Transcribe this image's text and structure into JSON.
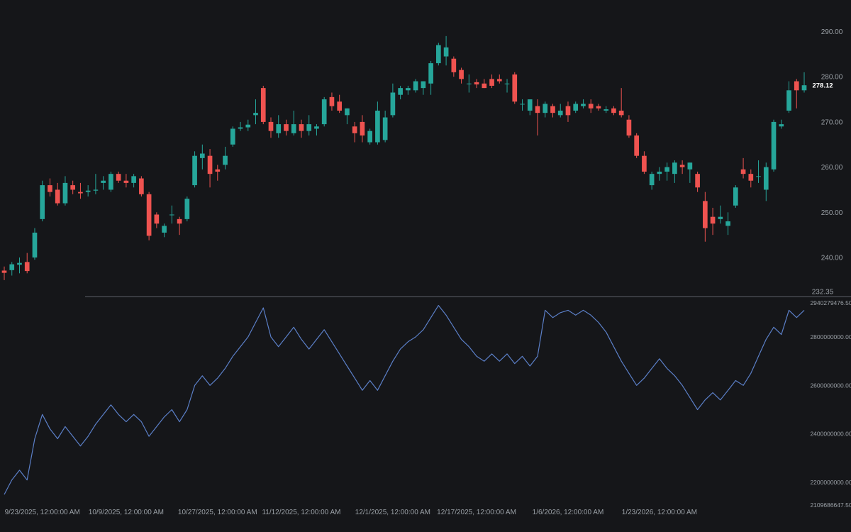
{
  "chart_data": [
    {
      "type": "candlestick",
      "price_scale": {
        "ticks": [
          "290.00",
          "280.00",
          "270.00",
          "260.00",
          "250.00",
          "240.00"
        ],
        "tick_values": [
          290,
          280,
          270,
          260,
          250,
          240
        ],
        "min_label": "232.35",
        "min_value": 232.35,
        "last_price_label": "278.12",
        "ylim": [
          232.35,
          295.2
        ]
      },
      "colors": {
        "up": "#26a69a",
        "down": "#ef5350",
        "background": "#151619",
        "separator": "#5d6068"
      },
      "candles": [
        {
          "o": 237.1,
          "h": 238.0,
          "l": 235.0,
          "c": 236.6
        },
        {
          "o": 237.2,
          "h": 239.0,
          "l": 236.0,
          "c": 238.5
        },
        {
          "o": 238.4,
          "h": 240.0,
          "l": 236.5,
          "c": 238.8
        },
        {
          "o": 239.0,
          "h": 241.0,
          "l": 236.5,
          "c": 237.0
        },
        {
          "o": 240.0,
          "h": 246.5,
          "l": 239.5,
          "c": 245.5
        },
        {
          "o": 248.5,
          "h": 257.0,
          "l": 248.0,
          "c": 256.0
        },
        {
          "o": 256.0,
          "h": 257.5,
          "l": 253.5,
          "c": 254.5
        },
        {
          "o": 255.0,
          "h": 256.5,
          "l": 251.5,
          "c": 252.0
        },
        {
          "o": 252.0,
          "h": 258.0,
          "l": 251.5,
          "c": 256.5
        },
        {
          "o": 256.0,
          "h": 257.0,
          "l": 254.0,
          "c": 255.0
        },
        {
          "o": 254.5,
          "h": 256.5,
          "l": 253.0,
          "c": 254.2
        },
        {
          "o": 254.5,
          "h": 256.0,
          "l": 253.5,
          "c": 254.8
        },
        {
          "o": 254.8,
          "h": 258.5,
          "l": 254.0,
          "c": 255.0
        },
        {
          "o": 256.5,
          "h": 258.0,
          "l": 255.0,
          "c": 257.0
        },
        {
          "o": 255.0,
          "h": 259.0,
          "l": 254.5,
          "c": 258.5
        },
        {
          "o": 258.5,
          "h": 259.0,
          "l": 256.5,
          "c": 257.0
        },
        {
          "o": 257.0,
          "h": 258.5,
          "l": 255.5,
          "c": 256.5
        },
        {
          "o": 256.5,
          "h": 258.5,
          "l": 255.5,
          "c": 258.0
        },
        {
          "o": 257.5,
          "h": 258.0,
          "l": 253.5,
          "c": 254.0
        },
        {
          "o": 254.0,
          "h": 254.5,
          "l": 243.8,
          "c": 244.8
        },
        {
          "o": 249.5,
          "h": 250.0,
          "l": 246.5,
          "c": 247.5
        },
        {
          "o": 245.5,
          "h": 247.5,
          "l": 244.5,
          "c": 247.0
        },
        {
          "o": 249.5,
          "h": 251.5,
          "l": 247.5,
          "c": 249.5
        },
        {
          "o": 248.5,
          "h": 249.0,
          "l": 245.0,
          "c": 247.5
        },
        {
          "o": 248.5,
          "h": 253.5,
          "l": 248.0,
          "c": 253.0
        },
        {
          "o": 256.0,
          "h": 263.5,
          "l": 255.5,
          "c": 262.5
        },
        {
          "o": 262.0,
          "h": 265.0,
          "l": 259.5,
          "c": 263.0
        },
        {
          "o": 262.5,
          "h": 264.0,
          "l": 255.5,
          "c": 258.5
        },
        {
          "o": 259.5,
          "h": 260.5,
          "l": 257.0,
          "c": 259.0
        },
        {
          "o": 260.5,
          "h": 264.5,
          "l": 259.5,
          "c": 262.5
        },
        {
          "o": 265.0,
          "h": 269.0,
          "l": 264.5,
          "c": 268.5
        },
        {
          "o": 268.5,
          "h": 270.0,
          "l": 268.0,
          "c": 268.8
        },
        {
          "o": 268.8,
          "h": 270.5,
          "l": 268.0,
          "c": 269.4
        },
        {
          "o": 271.5,
          "h": 275.0,
          "l": 269.5,
          "c": 272.0
        },
        {
          "o": 277.5,
          "h": 278.0,
          "l": 269.5,
          "c": 270.0
        },
        {
          "o": 270.0,
          "h": 271.0,
          "l": 266.5,
          "c": 268.0
        },
        {
          "o": 267.5,
          "h": 271.5,
          "l": 266.5,
          "c": 269.5
        },
        {
          "o": 269.5,
          "h": 270.5,
          "l": 267.0,
          "c": 268.0
        },
        {
          "o": 267.5,
          "h": 272.5,
          "l": 267.0,
          "c": 269.5
        },
        {
          "o": 269.5,
          "h": 270.5,
          "l": 266.5,
          "c": 268.0
        },
        {
          "o": 268.0,
          "h": 271.5,
          "l": 267.0,
          "c": 269.5
        },
        {
          "o": 268.5,
          "h": 269.5,
          "l": 267.0,
          "c": 269.0
        },
        {
          "o": 269.5,
          "h": 275.5,
          "l": 269.0,
          "c": 275.0
        },
        {
          "o": 275.5,
          "h": 276.5,
          "l": 272.5,
          "c": 273.5
        },
        {
          "o": 274.5,
          "h": 276.0,
          "l": 272.0,
          "c": 272.5
        },
        {
          "o": 271.5,
          "h": 273.0,
          "l": 269.5,
          "c": 273.0
        },
        {
          "o": 269.0,
          "h": 270.0,
          "l": 265.5,
          "c": 267.5
        },
        {
          "o": 270.0,
          "h": 271.5,
          "l": 265.5,
          "c": 267.0
        },
        {
          "o": 265.5,
          "h": 268.5,
          "l": 265.0,
          "c": 268.0
        },
        {
          "o": 265.5,
          "h": 274.5,
          "l": 265.0,
          "c": 272.5
        },
        {
          "o": 266.0,
          "h": 272.5,
          "l": 265.5,
          "c": 271.0
        },
        {
          "o": 271.5,
          "h": 278.5,
          "l": 271.0,
          "c": 276.5
        },
        {
          "o": 276.0,
          "h": 278.0,
          "l": 275.0,
          "c": 277.5
        },
        {
          "o": 277.0,
          "h": 278.0,
          "l": 276.0,
          "c": 277.5
        },
        {
          "o": 277.0,
          "h": 279.5,
          "l": 276.5,
          "c": 279.0
        },
        {
          "o": 277.5,
          "h": 279.0,
          "l": 276.0,
          "c": 279.0
        },
        {
          "o": 278.5,
          "h": 283.5,
          "l": 276.0,
          "c": 283.0
        },
        {
          "o": 283.0,
          "h": 287.5,
          "l": 282.5,
          "c": 287.0
        },
        {
          "o": 284.5,
          "h": 289.0,
          "l": 282.5,
          "c": 286.5
        },
        {
          "o": 284.0,
          "h": 284.5,
          "l": 280.0,
          "c": 281.0
        },
        {
          "o": 281.5,
          "h": 282.0,
          "l": 278.5,
          "c": 279.5
        },
        {
          "o": 278.5,
          "h": 280.5,
          "l": 276.5,
          "c": 278.5
        },
        {
          "o": 278.8,
          "h": 279.5,
          "l": 277.5,
          "c": 278.3
        },
        {
          "o": 278.5,
          "h": 279.5,
          "l": 277.5,
          "c": 277.5
        },
        {
          "o": 279.5,
          "h": 280.5,
          "l": 277.5,
          "c": 278.0
        },
        {
          "o": 279.5,
          "h": 280.5,
          "l": 278.5,
          "c": 279.0
        },
        {
          "o": 278.5,
          "h": 279.5,
          "l": 276.5,
          "c": 278.5
        },
        {
          "o": 280.5,
          "h": 281.0,
          "l": 274.0,
          "c": 274.5
        },
        {
          "o": 274.0,
          "h": 275.0,
          "l": 272.5,
          "c": 274.0
        },
        {
          "o": 272.5,
          "h": 275.0,
          "l": 271.5,
          "c": 275.0
        },
        {
          "o": 273.5,
          "h": 275.0,
          "l": 267.0,
          "c": 272.0
        },
        {
          "o": 272.0,
          "h": 274.5,
          "l": 271.0,
          "c": 274.0
        },
        {
          "o": 273.5,
          "h": 274.0,
          "l": 271.0,
          "c": 272.0
        },
        {
          "o": 271.5,
          "h": 274.0,
          "l": 271.0,
          "c": 272.5
        },
        {
          "o": 273.5,
          "h": 274.5,
          "l": 270.0,
          "c": 271.5
        },
        {
          "o": 272.5,
          "h": 274.5,
          "l": 272.0,
          "c": 274.0
        },
        {
          "o": 273.5,
          "h": 275.0,
          "l": 273.0,
          "c": 274.0
        },
        {
          "o": 274.0,
          "h": 275.0,
          "l": 272.0,
          "c": 273.0
        },
        {
          "o": 273.5,
          "h": 274.0,
          "l": 272.5,
          "c": 273.0
        },
        {
          "o": 272.5,
          "h": 273.5,
          "l": 272.0,
          "c": 272.8
        },
        {
          "o": 273.0,
          "h": 273.5,
          "l": 271.5,
          "c": 272.0
        },
        {
          "o": 272.5,
          "h": 277.5,
          "l": 271.0,
          "c": 271.5
        },
        {
          "o": 270.5,
          "h": 271.5,
          "l": 266.5,
          "c": 267.0
        },
        {
          "o": 267.0,
          "h": 267.5,
          "l": 262.0,
          "c": 262.5
        },
        {
          "o": 262.5,
          "h": 263.5,
          "l": 258.5,
          "c": 259.0
        },
        {
          "o": 256.0,
          "h": 259.0,
          "l": 255.0,
          "c": 258.5
        },
        {
          "o": 258.5,
          "h": 260.0,
          "l": 257.0,
          "c": 259.0
        },
        {
          "o": 259.0,
          "h": 261.0,
          "l": 257.0,
          "c": 260.0
        },
        {
          "o": 258.5,
          "h": 261.5,
          "l": 256.5,
          "c": 261.0
        },
        {
          "o": 260.5,
          "h": 261.5,
          "l": 258.5,
          "c": 260.0
        },
        {
          "o": 259.5,
          "h": 261.0,
          "l": 256.5,
          "c": 261.0
        },
        {
          "o": 258.5,
          "h": 259.0,
          "l": 254.5,
          "c": 255.5
        },
        {
          "o": 252.5,
          "h": 254.5,
          "l": 243.5,
          "c": 246.5
        },
        {
          "o": 249.0,
          "h": 251.0,
          "l": 245.0,
          "c": 247.5
        },
        {
          "o": 248.5,
          "h": 251.5,
          "l": 247.5,
          "c": 249.0
        },
        {
          "o": 247.0,
          "h": 250.0,
          "l": 245.0,
          "c": 248.0
        },
        {
          "o": 251.5,
          "h": 256.0,
          "l": 251.0,
          "c": 255.5
        },
        {
          "o": 259.5,
          "h": 262.0,
          "l": 257.5,
          "c": 258.5
        },
        {
          "o": 258.5,
          "h": 259.5,
          "l": 255.5,
          "c": 257.0
        },
        {
          "o": 258.0,
          "h": 261.5,
          "l": 256.5,
          "c": 258.0
        },
        {
          "o": 255.0,
          "h": 261.0,
          "l": 252.5,
          "c": 260.0
        },
        {
          "o": 259.5,
          "h": 270.5,
          "l": 259.0,
          "c": 270.0
        },
        {
          "o": 269.0,
          "h": 270.5,
          "l": 268.5,
          "c": 269.5
        },
        {
          "o": 272.5,
          "h": 279.0,
          "l": 272.0,
          "c": 277.0
        },
        {
          "o": 279.0,
          "h": 279.5,
          "l": 273.0,
          "c": 277.0
        },
        {
          "o": 277.0,
          "h": 281.0,
          "l": 276.5,
          "c": 278.12
        }
      ]
    },
    {
      "type": "line",
      "value_scale": {
        "ticks": [
          "2800000000.00",
          "2600000000.00",
          "2400000000.00",
          "2200000000.00"
        ],
        "tick_values": [
          2800000000,
          2600000000,
          2400000000,
          2200000000
        ],
        "max_label": "2940279476.50",
        "max_value": 2940279476.5,
        "min_label": "2109686647.50",
        "min_value": 2109686647.5
      },
      "colors": {
        "line": "#5b7fc7"
      },
      "values": [
        2150000000,
        2210000000,
        2250000000,
        2210000000,
        2380000000,
        2480000000,
        2420000000,
        2380000000,
        2430000000,
        2390000000,
        2350000000,
        2390000000,
        2440000000,
        2480000000,
        2520000000,
        2480000000,
        2450000000,
        2480000000,
        2450000000,
        2390000000,
        2430000000,
        2470000000,
        2500000000,
        2450000000,
        2500000000,
        2600000000,
        2640000000,
        2600000000,
        2630000000,
        2670000000,
        2720000000,
        2760000000,
        2800000000,
        2860000000,
        2920000000,
        2800000000,
        2760000000,
        2800000000,
        2840000000,
        2790000000,
        2750000000,
        2790000000,
        2830000000,
        2780000000,
        2730000000,
        2680000000,
        2630000000,
        2580000000,
        2620000000,
        2580000000,
        2640000000,
        2700000000,
        2750000000,
        2780000000,
        2800000000,
        2830000000,
        2880000000,
        2930000000,
        2890000000,
        2840000000,
        2790000000,
        2760000000,
        2720000000,
        2700000000,
        2730000000,
        2700000000,
        2730000000,
        2690000000,
        2720000000,
        2680000000,
        2720000000,
        2910000000,
        2880000000,
        2900000000,
        2910000000,
        2890000000,
        2910000000,
        2890000000,
        2860000000,
        2820000000,
        2760000000,
        2700000000,
        2650000000,
        2600000000,
        2630000000,
        2670000000,
        2710000000,
        2670000000,
        2640000000,
        2600000000,
        2550000000,
        2500000000,
        2540000000,
        2570000000,
        2540000000,
        2580000000,
        2620000000,
        2600000000,
        2650000000,
        2720000000,
        2790000000,
        2840000000,
        2810000000,
        2910000000,
        2880000000,
        2910000000
      ]
    }
  ],
  "x_axis": {
    "labels": [
      "9/23/2025, 12:00:00 AM",
      "10/9/2025, 12:00:00 AM",
      "10/27/2025, 12:00:00 AM",
      "11/12/2025, 12:00:00 AM",
      "12/1/2025, 12:00:00 AM",
      "12/17/2025, 12:00:00 AM",
      "1/6/2026, 12:00:00 AM",
      "1/23/2026, 12:00:00 AM"
    ],
    "label_index": [
      5,
      16,
      28,
      39,
      51,
      62,
      74,
      86
    ]
  }
}
